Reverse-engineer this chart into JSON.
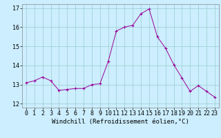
{
  "x": [
    0,
    1,
    2,
    3,
    4,
    5,
    6,
    7,
    8,
    9,
    10,
    11,
    12,
    13,
    14,
    15,
    16,
    17,
    18,
    19,
    20,
    21,
    22,
    23
  ],
  "y": [
    13.1,
    13.2,
    13.4,
    13.2,
    12.7,
    12.75,
    12.8,
    12.8,
    13.0,
    13.05,
    14.2,
    15.8,
    16.0,
    16.1,
    16.7,
    16.95,
    15.5,
    14.9,
    14.05,
    13.35,
    12.65,
    12.95,
    12.65,
    12.35
  ],
  "line_color": "#990099",
  "marker_color": "#990099",
  "bg_color": "#cceeff",
  "grid_color": "#99cccc",
  "xlabel": "Windchill (Refroidissement éolien,°C)",
  "ylabel_ticks": [
    12,
    13,
    14,
    15,
    16,
    17
  ],
  "xlim": [
    -0.5,
    23.5
  ],
  "ylim": [
    11.8,
    17.2
  ],
  "xlabel_fontsize": 6.5,
  "tick_fontsize": 6.0,
  "figwidth": 3.2,
  "figheight": 2.0,
  "dpi": 100
}
